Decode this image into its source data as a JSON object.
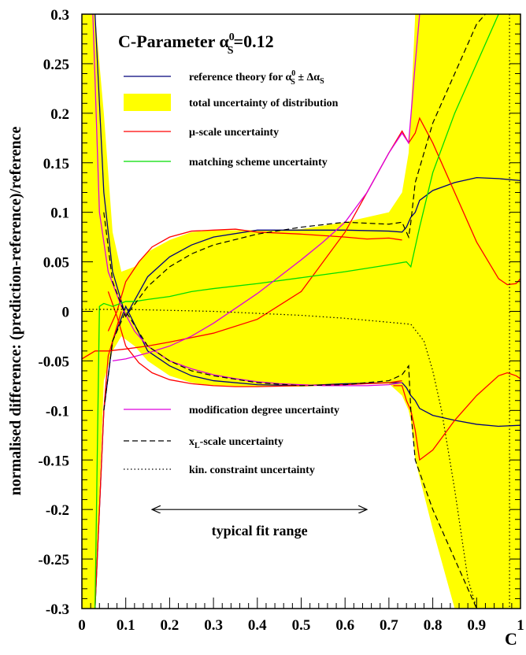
{
  "chart_data": {
    "type": "line",
    "title_prefix": "C-Parameter α",
    "title_sup": "0",
    "title_sub": "S",
    "title_suffix": "=0.12",
    "xlabel": "C",
    "ylabel": "normalised difference: (prediction-reference)/reference",
    "xlim": [
      0,
      1
    ],
    "ylim": [
      -0.3,
      0.3
    ],
    "grid": false,
    "x_ticks": [
      "0",
      "0.1",
      "0.2",
      "0.3",
      "0.4",
      "0.5",
      "0.6",
      "0.7",
      "0.8",
      "0.9",
      "1"
    ],
    "y_ticks": [
      "0.3",
      "0.25",
      "0.2",
      "0.15",
      "0.1",
      "0.05",
      "0",
      "-0.05",
      "-0.1",
      "-0.15",
      "-0.2",
      "-0.25",
      "-0.3"
    ],
    "legend_top": [
      {
        "key": "reference",
        "label": "reference theory for α",
        "label_sup": "0",
        "label_sub": "S",
        "label_tail": " ± Δα",
        "label_tail_sub": "S",
        "color": "#00007a",
        "style": "solid"
      },
      {
        "key": "total",
        "label": "total uncertainty of distribution",
        "color": "#ffff00",
        "style": "fill"
      },
      {
        "key": "mu",
        "label": "μ-scale uncertainty",
        "color": "#ff0000",
        "style": "solid"
      },
      {
        "key": "matching",
        "label": "matching scheme uncertainty",
        "color": "#00dd00",
        "style": "solid"
      }
    ],
    "legend_bottom": [
      {
        "key": "modification",
        "label": "modification degree uncertainty",
        "color": "#dd00dd",
        "style": "solid"
      },
      {
        "key": "xl",
        "label": "x",
        "label_sub": "L",
        "label_tail": "-scale uncertainty",
        "color": "#000000",
        "style": "dashed"
      },
      {
        "key": "kin",
        "label": "kin. constraint uncertainty",
        "color": "#000000",
        "style": "dotted"
      }
    ],
    "annotation": {
      "text": "typical fit range",
      "from": 0.16,
      "to": 0.65,
      "y": -0.2
    },
    "vline_x": 0.975,
    "band": {
      "x": [
        0.0,
        0.015,
        0.02,
        0.03,
        0.05,
        0.07,
        0.09,
        0.12,
        0.15,
        0.2,
        0.25,
        0.3,
        0.4,
        0.5,
        0.6,
        0.7,
        0.73,
        0.745,
        0.75,
        0.76,
        0.8,
        0.85,
        0.9,
        0.95,
        1.0
      ],
      "upper": [
        0.3,
        0.3,
        0.3,
        0.3,
        0.2,
        0.08,
        0.04,
        0.045,
        0.06,
        0.072,
        0.08,
        0.082,
        0.082,
        0.083,
        0.09,
        0.1,
        0.12,
        0.16,
        0.2,
        0.3,
        0.3,
        0.3,
        0.3,
        0.3,
        0.3
      ],
      "lower": [
        -0.3,
        -0.3,
        -0.3,
        -0.3,
        -0.07,
        -0.04,
        -0.025,
        -0.035,
        -0.05,
        -0.065,
        -0.072,
        -0.075,
        -0.076,
        -0.076,
        -0.074,
        -0.073,
        -0.085,
        -0.1,
        -0.11,
        -0.15,
        -0.22,
        -0.3,
        -0.3,
        -0.3,
        -0.3
      ]
    },
    "series": [
      {
        "key": "reference",
        "style": "solid",
        "color": "#00007a",
        "lines": [
          {
            "x": [
              0.03,
              0.05,
              0.07,
              0.1,
              0.15,
              0.2,
              0.25,
              0.3,
              0.4,
              0.5,
              0.6,
              0.7,
              0.73,
              0.74,
              0.75,
              0.76,
              0.77,
              0.8,
              0.85,
              0.9,
              0.95,
              1.0
            ],
            "y": [
              0.3,
              0.12,
              0.04,
              -0.005,
              0.035,
              0.055,
              0.067,
              0.075,
              0.082,
              0.082,
              0.082,
              0.081,
              0.08,
              0.085,
              0.095,
              0.1,
              0.112,
              0.122,
              0.13,
              0.135,
              0.134,
              0.132
            ]
          },
          {
            "x": [
              0.03,
              0.05,
              0.07,
              0.1,
              0.15,
              0.2,
              0.25,
              0.3,
              0.4,
              0.5,
              0.6,
              0.7,
              0.73,
              0.74,
              0.75,
              0.76,
              0.77,
              0.8,
              0.85,
              0.9,
              0.95,
              1.0
            ],
            "y": [
              -0.3,
              -0.1,
              -0.03,
              0.005,
              -0.04,
              -0.055,
              -0.065,
              -0.07,
              -0.074,
              -0.075,
              -0.073,
              -0.072,
              -0.072,
              -0.077,
              -0.085,
              -0.09,
              -0.098,
              -0.105,
              -0.11,
              -0.114,
              -0.116,
              -0.115
            ]
          }
        ]
      },
      {
        "key": "total_edge",
        "style": "solid",
        "color": "#ff0000",
        "lines": [
          {
            "x": [
              0.06,
              0.08,
              0.1,
              0.13,
              0.16,
              0.2,
              0.25,
              0.3,
              0.35,
              0.4,
              0.5,
              0.6,
              0.65,
              0.7,
              0.73
            ],
            "y": [
              -0.02,
              0.0,
              0.03,
              0.05,
              0.065,
              0.075,
              0.081,
              0.082,
              0.083,
              0.08,
              0.078,
              0.075,
              0.073,
              0.074,
              0.072
            ]
          },
          {
            "x": [
              0.06,
              0.08,
              0.1,
              0.13,
              0.16,
              0.2,
              0.25,
              0.3,
              0.35,
              0.4,
              0.5,
              0.6,
              0.65,
              0.7,
              0.73
            ],
            "y": [
              0.02,
              -0.005,
              -0.035,
              -0.052,
              -0.062,
              -0.069,
              -0.073,
              -0.075,
              -0.076,
              -0.076,
              -0.075,
              -0.074,
              -0.073,
              -0.072,
              -0.07
            ]
          }
        ]
      },
      {
        "key": "mu",
        "style": "solid",
        "color": "#ff0000",
        "lines": [
          {
            "x": [
              0.0,
              0.03,
              0.06,
              0.1,
              0.15,
              0.2,
              0.3,
              0.4,
              0.5,
              0.6,
              0.65,
              0.7,
              0.73,
              0.745,
              0.76,
              0.77,
              0.8,
              0.85,
              0.9,
              0.95,
              0.97,
              0.99,
              1.0
            ],
            "y": [
              -0.048,
              -0.04,
              -0.04,
              -0.038,
              -0.035,
              -0.031,
              -0.022,
              -0.008,
              0.02,
              0.08,
              0.12,
              0.16,
              0.182,
              0.17,
              0.18,
              0.195,
              0.17,
              0.12,
              0.07,
              0.033,
              0.027,
              0.028,
              0.033
            ]
          },
          {
            "x": [
              0.03,
              0.05,
              0.06,
              0.07,
              0.09
            ],
            "y": [
              -0.3,
              -0.1,
              -0.045,
              -0.03,
              0.0
            ]
          },
          {
            "x": [
              0.71,
              0.73,
              0.74,
              0.75,
              0.76,
              0.77,
              0.8,
              0.85,
              0.9,
              0.95,
              0.97,
              0.99,
              1.0
            ],
            "y": [
              -0.075,
              -0.075,
              -0.09,
              -0.1,
              -0.12,
              -0.15,
              -0.14,
              -0.11,
              -0.085,
              -0.065,
              -0.062,
              -0.065,
              -0.068
            ]
          }
        ]
      },
      {
        "key": "matching",
        "style": "solid",
        "color": "#00dd00",
        "lines": [
          {
            "x": [
              0.03,
              0.04,
              0.05,
              0.07,
              0.1,
              0.12,
              0.15,
              0.2,
              0.25,
              0.3,
              0.4,
              0.5,
              0.6,
              0.7,
              0.74,
              0.75,
              0.77,
              0.8,
              0.85,
              0.9,
              0.95
            ],
            "y": [
              -0.3,
              0.005,
              0.008,
              0.005,
              0.01,
              0.01,
              0.012,
              0.015,
              0.02,
              0.023,
              0.028,
              0.034,
              0.04,
              0.047,
              0.05,
              0.045,
              0.085,
              0.14,
              0.2,
              0.25,
              0.3
            ]
          }
        ]
      },
      {
        "key": "modification",
        "style": "solid",
        "color": "#dd00dd",
        "lines": [
          {
            "x": [
              0.07,
              0.1,
              0.15,
              0.2,
              0.25,
              0.3,
              0.35,
              0.4,
              0.45,
              0.5,
              0.55,
              0.6,
              0.65,
              0.7,
              0.73,
              0.745,
              0.76,
              0.77
            ],
            "y": [
              -0.05,
              -0.048,
              -0.042,
              -0.035,
              -0.025,
              -0.012,
              0.003,
              0.018,
              0.035,
              0.052,
              0.07,
              0.09,
              0.12,
              0.16,
              0.18,
              0.17,
              0.25,
              0.3
            ]
          },
          {
            "x": [
              0.025,
              0.04,
              0.06,
              0.09,
              0.12,
              0.15,
              0.2,
              0.25,
              0.3,
              0.35,
              0.4,
              0.45,
              0.5,
              0.55,
              0.6,
              0.65,
              0.7,
              0.73
            ],
            "y": [
              0.3,
              0.1,
              0.04,
              0.005,
              -0.02,
              -0.035,
              -0.05,
              -0.058,
              -0.064,
              -0.068,
              -0.071,
              -0.073,
              -0.074,
              -0.075,
              -0.075,
              -0.075,
              -0.074,
              -0.072
            ]
          }
        ]
      },
      {
        "key": "xl",
        "style": "dashed",
        "color": "#000000",
        "lines": [
          {
            "x": [
              0.05,
              0.07,
              0.1,
              0.15,
              0.2,
              0.25,
              0.3,
              0.4,
              0.5,
              0.6,
              0.7,
              0.73,
              0.745,
              0.75,
              0.76,
              0.8,
              0.85,
              0.9,
              0.92
            ],
            "y": [
              0.1,
              0.03,
              -0.005,
              0.025,
              0.045,
              0.058,
              0.067,
              0.078,
              0.085,
              0.09,
              0.088,
              0.09,
              0.075,
              0.09,
              0.13,
              0.19,
              0.24,
              0.29,
              0.3
            ]
          },
          {
            "x": [
              0.05,
              0.07,
              0.1,
              0.15,
              0.2,
              0.25,
              0.3,
              0.4,
              0.5,
              0.6,
              0.7,
              0.73,
              0.745,
              0.75,
              0.76,
              0.8,
              0.85,
              0.88,
              0.9
            ],
            "y": [
              -0.1,
              -0.03,
              0.0,
              -0.035,
              -0.05,
              -0.06,
              -0.065,
              -0.072,
              -0.075,
              -0.074,
              -0.07,
              -0.064,
              -0.055,
              -0.1,
              -0.15,
              -0.2,
              -0.25,
              -0.28,
              -0.3
            ]
          }
        ]
      },
      {
        "key": "kin",
        "style": "dotted",
        "color": "#000000",
        "lines": [
          {
            "x": [
              0.0,
              0.1,
              0.2,
              0.3,
              0.4,
              0.5,
              0.6,
              0.7,
              0.75,
              0.78,
              0.8,
              0.82,
              0.85,
              0.88,
              0.9
            ],
            "y": [
              0.002,
              0.002,
              0.001,
              0.0,
              -0.002,
              -0.004,
              -0.007,
              -0.011,
              -0.013,
              -0.03,
              -0.06,
              -0.1,
              -0.18,
              -0.27,
              -0.3
            ]
          }
        ]
      }
    ]
  }
}
